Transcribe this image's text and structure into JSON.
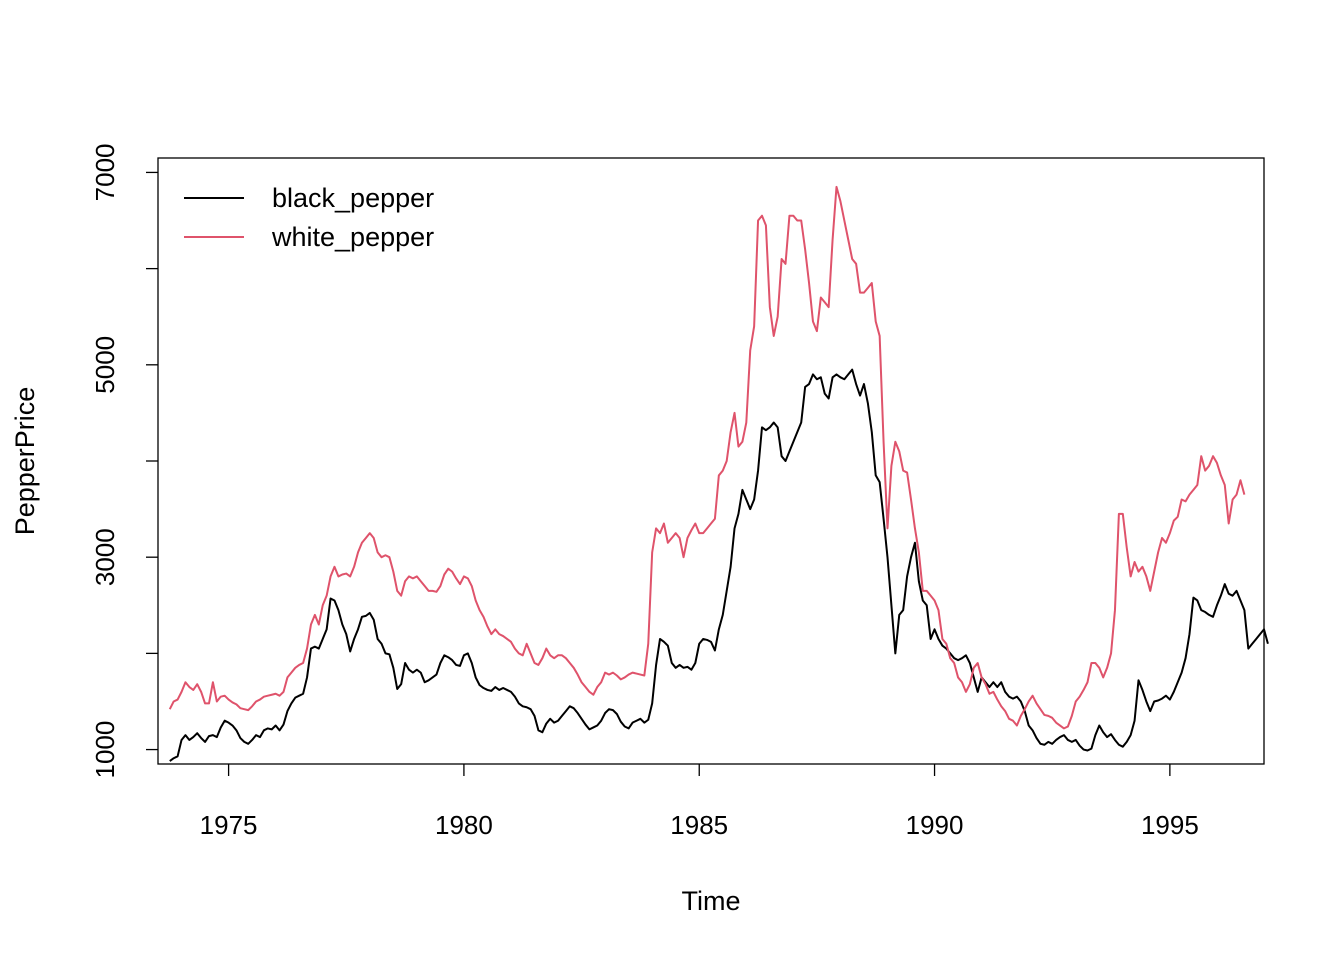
{
  "chart_data": {
    "type": "line",
    "xlabel": "Time",
    "ylabel": "PepperPrice",
    "xlim": [
      1973.5,
      1997.0
    ],
    "ylim": [
      850,
      7150
    ],
    "xticks": [
      1975,
      1980,
      1985,
      1990,
      1995
    ],
    "yticks": [
      1000,
      2000,
      3000,
      4000,
      5000,
      6000,
      7000
    ],
    "yticks_labeled": [
      1000,
      3000,
      5000,
      7000
    ],
    "legend": {
      "placement": "top-left",
      "box": false
    },
    "grid": false,
    "start": 1973.75,
    "step": 0.0833333,
    "series": [
      {
        "name": "black_pepper",
        "color": "#000000",
        "values": [
          880,
          910,
          930,
          1100,
          1150,
          1100,
          1130,
          1170,
          1120,
          1080,
          1140,
          1150,
          1130,
          1230,
          1300,
          1280,
          1250,
          1200,
          1120,
          1080,
          1060,
          1100,
          1150,
          1130,
          1200,
          1220,
          1210,
          1250,
          1200,
          1260,
          1400,
          1480,
          1540,
          1560,
          1580,
          1750,
          2050,
          2070,
          2050,
          2150,
          2250,
          2570,
          2550,
          2450,
          2300,
          2200,
          2020,
          2150,
          2250,
          2380,
          2390,
          2420,
          2350,
          2150,
          2100,
          2000,
          1990,
          1850,
          1630,
          1680,
          1900,
          1830,
          1800,
          1830,
          1800,
          1700,
          1720,
          1750,
          1780,
          1900,
          1980,
          1960,
          1930,
          1880,
          1870,
          1980,
          2000,
          1900,
          1750,
          1670,
          1640,
          1620,
          1610,
          1650,
          1620,
          1640,
          1620,
          1600,
          1550,
          1480,
          1450,
          1440,
          1420,
          1350,
          1200,
          1180,
          1270,
          1320,
          1280,
          1300,
          1350,
          1400,
          1450,
          1430,
          1380,
          1320,
          1260,
          1210,
          1230,
          1250,
          1300,
          1380,
          1420,
          1410,
          1370,
          1290,
          1240,
          1220,
          1280,
          1300,
          1320,
          1280,
          1310,
          1480,
          1880,
          2150,
          2120,
          2080,
          1900,
          1850,
          1880,
          1850,
          1860,
          1830,
          1900,
          2100,
          2150,
          2140,
          2120,
          2030,
          2250,
          2400,
          2650,
          2900,
          3300,
          3450,
          3700,
          3600,
          3500,
          3600,
          3900,
          4350,
          4320,
          4350,
          4400,
          4350,
          4050,
          4000,
          4100,
          4200,
          4300,
          4400,
          4770,
          4800,
          4900,
          4850,
          4870,
          4700,
          4650,
          4870,
          4900,
          4870,
          4850,
          4900,
          4950,
          4800,
          4680,
          4800,
          4600,
          4300,
          3850,
          3780,
          3400,
          3000,
          2500,
          2000,
          2400,
          2450,
          2800,
          3000,
          3150,
          2750,
          2550,
          2500,
          2150,
          2250,
          2150,
          2080,
          2050,
          2000,
          1950,
          1930,
          1950,
          1980,
          1900,
          1750,
          1600,
          1750,
          1700,
          1650,
          1700,
          1650,
          1700,
          1600,
          1550,
          1530,
          1550,
          1500,
          1400,
          1250,
          1200,
          1120,
          1060,
          1050,
          1080,
          1060,
          1100,
          1130,
          1150,
          1100,
          1080,
          1100,
          1040,
          1000,
          990,
          1010,
          1150,
          1250,
          1180,
          1130,
          1160,
          1100,
          1050,
          1030,
          1080,
          1150,
          1300,
          1720,
          1620,
          1500,
          1400,
          1500,
          1510,
          1530,
          1560,
          1520,
          1600,
          1700,
          1800,
          1950,
          2200,
          2580,
          2550,
          2450,
          2430,
          2400,
          2380,
          2500,
          2600,
          2720,
          2620,
          2600,
          2650,
          2550,
          2450,
          2050,
          2100,
          2150,
          2200,
          2250,
          2100
        ]
      },
      {
        "name": "white_pepper",
        "color": "#DF536B",
        "values": [
          1420,
          1500,
          1520,
          1600,
          1700,
          1650,
          1620,
          1680,
          1600,
          1480,
          1480,
          1700,
          1500,
          1550,
          1560,
          1520,
          1490,
          1470,
          1430,
          1420,
          1410,
          1450,
          1500,
          1520,
          1550,
          1560,
          1570,
          1580,
          1560,
          1600,
          1750,
          1800,
          1850,
          1880,
          1900,
          2050,
          2300,
          2400,
          2300,
          2500,
          2600,
          2800,
          2900,
          2800,
          2820,
          2830,
          2800,
          2900,
          3050,
          3150,
          3200,
          3250,
          3200,
          3050,
          3000,
          3020,
          3000,
          2850,
          2650,
          2600,
          2750,
          2800,
          2780,
          2800,
          2750,
          2700,
          2650,
          2650,
          2640,
          2700,
          2820,
          2880,
          2850,
          2780,
          2720,
          2800,
          2780,
          2700,
          2550,
          2450,
          2380,
          2280,
          2200,
          2250,
          2200,
          2180,
          2150,
          2120,
          2050,
          2000,
          1980,
          2100,
          2000,
          1900,
          1880,
          1950,
          2050,
          1980,
          1950,
          1980,
          1980,
          1950,
          1900,
          1850,
          1780,
          1700,
          1650,
          1600,
          1570,
          1650,
          1700,
          1800,
          1780,
          1800,
          1770,
          1730,
          1750,
          1780,
          1800,
          1790,
          1780,
          1770,
          2100,
          3050,
          3300,
          3250,
          3350,
          3150,
          3200,
          3250,
          3200,
          3000,
          3200,
          3280,
          3350,
          3250,
          3250,
          3300,
          3350,
          3400,
          3850,
          3900,
          4000,
          4300,
          4500,
          4150,
          4200,
          4400,
          5150,
          5400,
          6500,
          6550,
          6450,
          5600,
          5300,
          5500,
          6100,
          6050,
          6550,
          6550,
          6500,
          6500,
          6200,
          5850,
          5450,
          5350,
          5700,
          5650,
          5600,
          6300,
          6850,
          6700,
          6500,
          6300,
          6100,
          6050,
          5750,
          5750,
          5800,
          5850,
          5450,
          5300,
          4200,
          3300,
          3950,
          4200,
          4100,
          3900,
          3880,
          3600,
          3300,
          3050,
          2650,
          2650,
          2600,
          2550,
          2450,
          2150,
          2100,
          1950,
          1900,
          1750,
          1700,
          1600,
          1680,
          1850,
          1900,
          1750,
          1680,
          1580,
          1600,
          1520,
          1450,
          1400,
          1320,
          1300,
          1250,
          1350,
          1420,
          1500,
          1560,
          1480,
          1420,
          1360,
          1350,
          1330,
          1280,
          1250,
          1220,
          1240,
          1350,
          1500,
          1550,
          1620,
          1700,
          1900,
          1900,
          1850,
          1750,
          1850,
          2000,
          2450,
          3450,
          3450,
          3100,
          2800,
          2950,
          2850,
          2900,
          2800,
          2650,
          2850,
          3050,
          3200,
          3150,
          3250,
          3380,
          3420,
          3600,
          3580,
          3650,
          3700,
          3750,
          4050,
          3900,
          3950,
          4050,
          3980,
          3850,
          3750,
          3350,
          3600,
          3650,
          3800,
          3650
        ]
      }
    ]
  }
}
